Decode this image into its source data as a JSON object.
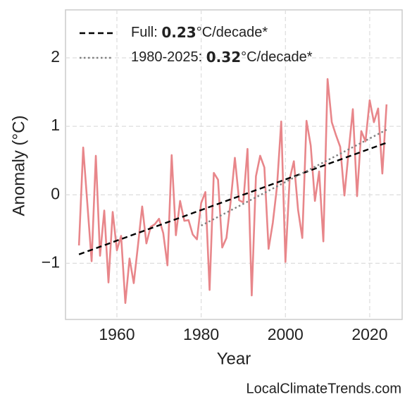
{
  "chart_data": {
    "type": "line",
    "xlabel": "Year",
    "ylabel": "Anomaly (°C)",
    "footer": "LocalClimateTrends.com",
    "x": [
      1951,
      1952,
      1953,
      1954,
      1955,
      1956,
      1957,
      1958,
      1959,
      1960,
      1961,
      1962,
      1963,
      1964,
      1965,
      1966,
      1967,
      1968,
      1969,
      1970,
      1971,
      1972,
      1973,
      1974,
      1975,
      1976,
      1977,
      1978,
      1979,
      1980,
      1981,
      1982,
      1983,
      1984,
      1985,
      1986,
      1987,
      1988,
      1989,
      1990,
      1991,
      1992,
      1993,
      1994,
      1995,
      1996,
      1997,
      1998,
      1999,
      2000,
      2001,
      2002,
      2003,
      2004,
      2005,
      2006,
      2007,
      2008,
      2009,
      2010,
      2011,
      2012,
      2013,
      2014,
      2015,
      2016,
      2017,
      2018,
      2019,
      2020,
      2021,
      2022,
      2023,
      2024
    ],
    "series": [
      {
        "color": "#e8868a",
        "values": [
          -0.74,
          0.69,
          -0.14,
          -0.97,
          0.57,
          -0.89,
          -0.23,
          -1.28,
          -0.25,
          -0.81,
          -0.6,
          -1.58,
          -0.93,
          -1.29,
          -0.74,
          -0.17,
          -0.71,
          -0.47,
          -0.43,
          -0.35,
          -0.56,
          -1.03,
          0.58,
          -0.59,
          -0.09,
          -0.38,
          -0.37,
          -0.58,
          -0.65,
          -0.12,
          0.04,
          -1.39,
          0.32,
          0.22,
          -0.77,
          -0.63,
          -0.1,
          0.54,
          -0.08,
          -0.11,
          0.67,
          -1.47,
          0.27,
          0.57,
          0.4,
          -0.79,
          -0.41,
          0.12,
          1.07,
          -0.98,
          0.23,
          0.49,
          -0.22,
          -0.63,
          1.08,
          0.72,
          -0.09,
          0.34,
          -0.68,
          1.69,
          1.06,
          0.87,
          0.7,
          -0.01,
          0.63,
          1.25,
          -0.02,
          0.93,
          0.78,
          1.38,
          1.06,
          1.26,
          0.31,
          1.32
        ]
      }
    ],
    "trends": [
      {
        "name": "Full:",
        "rate": 0.23,
        "unit": "°C/decade*",
        "color": "#000000",
        "dash": "dashed",
        "x": [
          1951,
          2024
        ],
        "values": [
          -0.87,
          0.76
        ]
      },
      {
        "name": "1980-2025:",
        "rate": 0.32,
        "unit": "°C/decade*",
        "color": "#808080",
        "dash": "dotted",
        "x": [
          1980,
          2024
        ],
        "values": [
          -0.45,
          0.95
        ]
      }
    ],
    "xlim": [
      1947.8,
      2027.7
    ],
    "ylim": [
      -1.82,
      2.7
    ],
    "xticks": [
      1960,
      1980,
      2000,
      2020
    ],
    "yticks": [
      2,
      1,
      0,
      {
        "value": -1,
        "label": "−1"
      }
    ],
    "grid": true,
    "legend": "upper left"
  }
}
